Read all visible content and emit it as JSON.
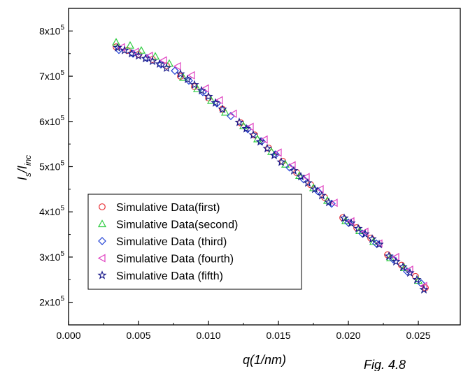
{
  "chart_data": {
    "type": "scatter",
    "xlabel": "q(1/nm)",
    "ylabel": "I_s/I_inc",
    "xlim": [
      0.0,
      0.028
    ],
    "ylim": [
      150000,
      850000
    ],
    "x_ticks": [
      0.0,
      0.005,
      0.01,
      0.015,
      0.02,
      0.025
    ],
    "x_tick_labels": [
      "0.000",
      "0.005",
      "0.010",
      "0.015",
      "0.020",
      "0.025"
    ],
    "y_ticks": [
      200000,
      300000,
      400000,
      500000,
      600000,
      700000,
      800000
    ],
    "y_tick_labels": [
      {
        "mant": "2x10",
        "exp": "5"
      },
      {
        "mant": "3x10",
        "exp": "5"
      },
      {
        "mant": "4x10",
        "exp": "5"
      },
      {
        "mant": "5x10",
        "exp": "5"
      },
      {
        "mant": "6x10",
        "exp": "5"
      },
      {
        "mant": "7x10",
        "exp": "5"
      },
      {
        "mant": "8x10",
        "exp": "5"
      }
    ],
    "grid": false,
    "legend_position": "bottom-left",
    "annotation": "Fig. 4.8",
    "series": [
      {
        "name": "Simulative Data(first)",
        "marker": "circle",
        "color": "#e8343a",
        "x": [
          0.0034,
          0.0042,
          0.005,
          0.006,
          0.007,
          0.008,
          0.009,
          0.01,
          0.011,
          0.0123,
          0.0133,
          0.0143,
          0.0153,
          0.0163,
          0.0173,
          0.0183,
          0.0196,
          0.0206,
          0.0216,
          0.0228,
          0.0238,
          0.0248,
          0.0255
        ],
        "y": [
          765000,
          757000,
          748000,
          737000,
          723000,
          700000,
          677000,
          652000,
          627000,
          597000,
          570000,
          541000,
          512000,
          487000,
          460000,
          432000,
          387000,
          365000,
          342000,
          305000,
          282000,
          257000,
          232000
        ]
      },
      {
        "name": "Simulative Data(second)",
        "marker": "triangle-up",
        "color": "#2ecc40",
        "x": [
          0.0034,
          0.0044,
          0.0052,
          0.0062,
          0.0072,
          0.0082,
          0.0092,
          0.0102,
          0.0112,
          0.0125,
          0.0135,
          0.0145,
          0.0155,
          0.0165,
          0.0175,
          0.0185,
          0.0198,
          0.0208,
          0.0218,
          0.023,
          0.024,
          0.025
        ],
        "y": [
          775000,
          768000,
          757000,
          744000,
          728000,
          697000,
          672000,
          646000,
          620000,
          590000,
          561000,
          533000,
          505000,
          480000,
          453000,
          425000,
          380000,
          358000,
          334000,
          298000,
          276000,
          248000
        ]
      },
      {
        "name": "Simulative Data (third)",
        "marker": "diamond",
        "color": "#1f3fd4",
        "x": [
          0.0036,
          0.0046,
          0.0056,
          0.0066,
          0.0076,
          0.0086,
          0.0096,
          0.0106,
          0.0116,
          0.0128,
          0.0138,
          0.0148,
          0.0158,
          0.0168,
          0.0178,
          0.0188,
          0.02,
          0.021,
          0.022,
          0.0232,
          0.0242,
          0.0252
        ],
        "y": [
          758000,
          750000,
          740000,
          726000,
          712000,
          690000,
          665000,
          640000,
          612000,
          583000,
          556000,
          527000,
          498000,
          472000,
          446000,
          418000,
          376000,
          352000,
          330000,
          295000,
          268000,
          242000
        ]
      },
      {
        "name": "Simulative Data (fourth)",
        "marker": "triangle-left",
        "color": "#e040c0",
        "x": [
          0.0038,
          0.0048,
          0.0058,
          0.0068,
          0.0078,
          0.0088,
          0.0098,
          0.0108,
          0.0118,
          0.013,
          0.014,
          0.015,
          0.016,
          0.017,
          0.018,
          0.019,
          0.0202,
          0.0212,
          0.0222,
          0.0234,
          0.0244,
          0.0254
        ],
        "y": [
          764000,
          754000,
          745000,
          735000,
          722000,
          702000,
          673000,
          647000,
          617000,
          588000,
          560000,
          531000,
          503000,
          477000,
          450000,
          420000,
          379000,
          356000,
          330000,
          300000,
          272000,
          236000
        ]
      },
      {
        "name": "Simulative Data (fifth)",
        "marker": "star",
        "color": "#1a1a8a",
        "x": [
          0.0035,
          0.004,
          0.0045,
          0.005,
          0.0055,
          0.006,
          0.0065,
          0.007,
          0.008,
          0.0085,
          0.009,
          0.0095,
          0.01,
          0.0105,
          0.011,
          0.0122,
          0.0127,
          0.0132,
          0.0137,
          0.0142,
          0.0147,
          0.0152,
          0.0161,
          0.0166,
          0.0171,
          0.0176,
          0.0181,
          0.0186,
          0.0197,
          0.0202,
          0.0207,
          0.0212,
          0.0217,
          0.0222,
          0.0229,
          0.0234,
          0.0239,
          0.0244,
          0.0249,
          0.0254
        ],
        "y": [
          763000,
          757000,
          750000,
          745000,
          739000,
          733000,
          727000,
          718000,
          705000,
          693000,
          681000,
          668000,
          655000,
          641000,
          627000,
          598000,
          584000,
          570000,
          555000,
          540000,
          525000,
          510000,
          491000,
          478000,
          464000,
          450000,
          436000,
          421000,
          386000,
          375000,
          363000,
          351000,
          340000,
          328000,
          302000,
          290000,
          278000,
          265000,
          250000,
          228000
        ]
      }
    ]
  }
}
